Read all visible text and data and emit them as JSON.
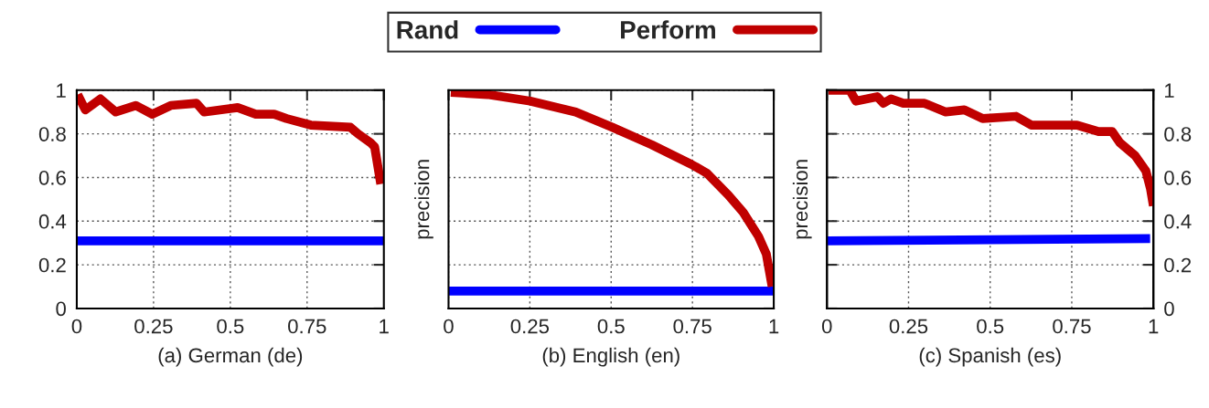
{
  "chart_data": [
    {
      "type": "line",
      "xlabel": "(a) German (de)",
      "xlim": [
        0,
        1
      ],
      "xticks": [
        0,
        0.25,
        0.5,
        0.75,
        1
      ],
      "ylim": [
        0,
        1
      ],
      "yticks": [
        0,
        0.2,
        0.4,
        0.6,
        0.8,
        1
      ],
      "grid": true,
      "legend": "top",
      "line_style": "solid",
      "series": [
        {
          "name": "Rand",
          "color": "#0000ff",
          "x": [
            0,
            1
          ],
          "values": [
            0.31,
            0.31
          ]
        },
        {
          "name": "Perform",
          "color": "#c00000",
          "x": [
            0.003,
            0.028,
            0.077,
            0.127,
            0.192,
            0.246,
            0.306,
            0.39,
            0.415,
            0.524,
            0.583,
            0.643,
            0.683,
            0.762,
            0.891,
            0.916,
            0.956,
            0.97,
            0.99
          ],
          "values": [
            0.98,
            0.91,
            0.96,
            0.9,
            0.93,
            0.89,
            0.93,
            0.94,
            0.9,
            0.92,
            0.89,
            0.89,
            0.87,
            0.84,
            0.83,
            0.8,
            0.76,
            0.74,
            0.57
          ]
        }
      ]
    },
    {
      "type": "line",
      "xlabel": "(b) English (en)",
      "ylabel": "precision",
      "xlim": [
        0,
        1
      ],
      "xticks": [
        0,
        0.25,
        0.5,
        0.75,
        1
      ],
      "ylim": [
        0,
        1
      ],
      "yticks": [
        0,
        0.2,
        0.4,
        0.6,
        0.8,
        1
      ],
      "tick_labels": "x",
      "grid": true,
      "line_style": "solid",
      "series": [
        {
          "color": "#0000ff",
          "x": [
            0,
            1
          ],
          "values": [
            0.08,
            0.08
          ]
        },
        {
          "color": "#c00000",
          "x": [
            0.007,
            0.12,
            0.251,
            0.391,
            0.504,
            0.625,
            0.747,
            0.794,
            0.86,
            0.906,
            0.953,
            0.977,
            0.995
          ],
          "values": [
            0.99,
            0.98,
            0.95,
            0.9,
            0.83,
            0.75,
            0.66,
            0.62,
            0.52,
            0.44,
            0.33,
            0.25,
            0.1
          ]
        }
      ]
    },
    {
      "type": "line",
      "xlabel": "(c) Spanish (es)",
      "ylabel": "precision",
      "xlim": [
        0,
        1
      ],
      "xticks": [
        0,
        0.25,
        0.5,
        0.75,
        1
      ],
      "y2lim": [
        0,
        1
      ],
      "y2ticks": [
        0,
        0.2,
        0.4,
        0.6,
        0.8,
        1
      ],
      "grid": true,
      "line_style": "solid",
      "series": [
        {
          "color": "#0000ff",
          "axis": "y2",
          "x": [
            0,
            0.99
          ],
          "values": [
            0.31,
            0.32
          ]
        },
        {
          "color": "#c00000",
          "axis": "y2",
          "x": [
            0.005,
            0.07,
            0.089,
            0.154,
            0.173,
            0.196,
            0.234,
            0.299,
            0.364,
            0.421,
            0.477,
            0.579,
            0.626,
            0.766,
            0.832,
            0.874,
            0.897,
            0.944,
            0.977,
            0.991,
            1.0
          ],
          "values": [
            1,
            1,
            0.95,
            0.97,
            0.94,
            0.96,
            0.94,
            0.94,
            0.9,
            0.91,
            0.87,
            0.88,
            0.84,
            0.84,
            0.81,
            0.81,
            0.76,
            0.7,
            0.63,
            0.55,
            0.47
          ]
        }
      ]
    }
  ]
}
